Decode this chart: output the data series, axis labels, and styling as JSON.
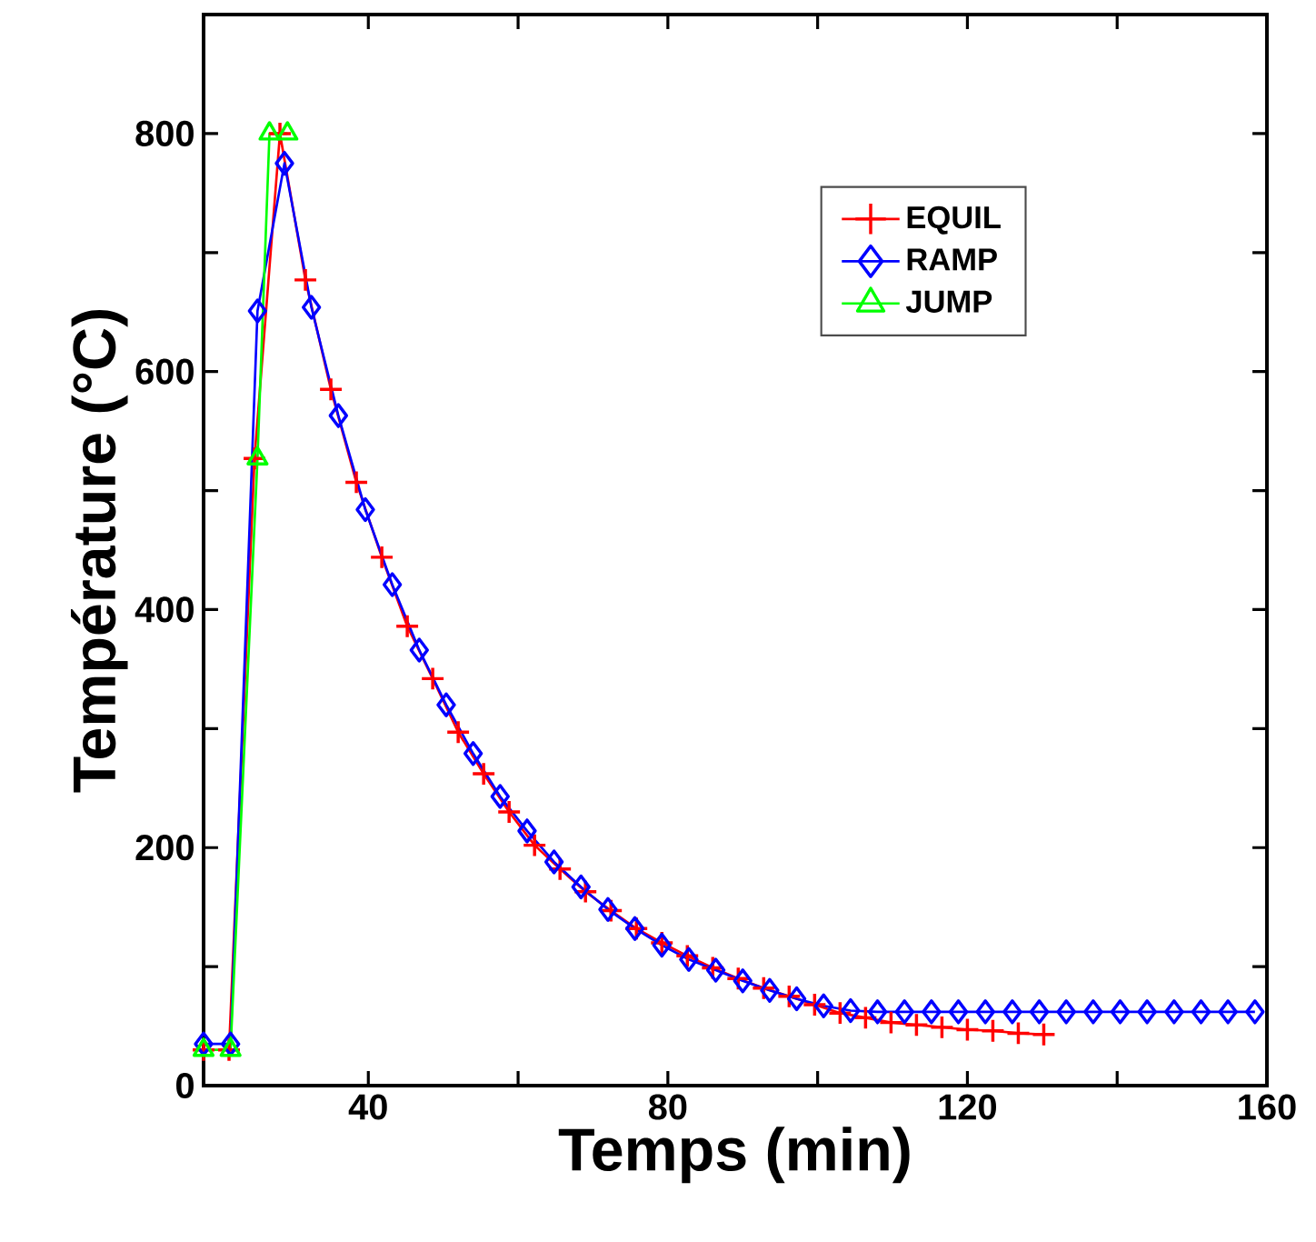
{
  "chart_data": {
    "type": "line",
    "xlabel": "Temps (min)",
    "ylabel": "Température (°C)",
    "xlim": [
      18,
      160
    ],
    "ylim": [
      0,
      900
    ],
    "xticks": [
      40,
      {
        "value": 60,
        "label": null
      },
      80,
      {
        "value": 100,
        "label": null
      },
      120,
      {
        "value": 140,
        "label": null
      },
      160
    ],
    "yticks": [
      0,
      {
        "value": 100,
        "label": null
      },
      200,
      {
        "value": 300,
        "label": null
      },
      400,
      {
        "value": 500,
        "label": null
      },
      600,
      {
        "value": 700,
        "label": null
      },
      800
    ],
    "grid": false,
    "legend": "top right",
    "series": [
      {
        "name": "EQUIL",
        "color": "#ff0000",
        "marker": "cross",
        "x": [
          18,
          21.4,
          24.8,
          28.2,
          31.6,
          35,
          38.4,
          41.8,
          45.2,
          48.6,
          52,
          55.4,
          58.8,
          62.2,
          65.6,
          69,
          72.4,
          75.8,
          79.2,
          82.6,
          86,
          89.4,
          92.8,
          96.2,
          99.6,
          103,
          106.4,
          109.8,
          113.2,
          116.6,
          120,
          123.4,
          126.8,
          130.2
        ],
        "values": [
          30,
          30,
          527,
          800,
          677,
          585,
          507,
          444,
          386,
          342,
          297,
          262,
          230,
          202,
          182,
          163,
          147,
          132,
          120,
          109,
          99,
          90,
          82,
          75,
          68,
          61,
          57,
          53,
          51,
          49,
          47,
          46,
          44,
          43
        ]
      },
      {
        "name": "RAMP",
        "color": "#0000ff",
        "marker": "diamond",
        "x": [
          18,
          21.6,
          25.2,
          28.8,
          32.4,
          36,
          39.6,
          43.2,
          46.8,
          50.4,
          54,
          57.6,
          61.2,
          64.8,
          68.4,
          72,
          75.6,
          79.2,
          82.8,
          86.4,
          90,
          93.6,
          97.2,
          100.8,
          104.4,
          108,
          111.6,
          115.2,
          118.8,
          122.4,
          126,
          129.6,
          133.2,
          136.8,
          140.4,
          144,
          147.6,
          151.2,
          154.8,
          158.4
        ],
        "values": [
          35,
          35,
          651,
          775,
          654,
          563,
          484,
          421,
          366,
          320,
          279,
          243,
          214,
          188,
          167,
          148,
          132,
          118,
          106,
          97,
          88,
          80,
          73,
          67,
          63,
          62,
          62,
          62,
          62,
          62,
          62,
          62,
          62,
          62,
          62,
          62,
          62,
          62,
          62,
          62
        ]
      },
      {
        "name": "JUMP",
        "color": "#00ff00",
        "marker": "triangle",
        "x": [
          18,
          21.6,
          25.2,
          26.8,
          29.2
        ],
        "values": [
          30,
          30,
          527,
          800,
          800
        ]
      }
    ]
  }
}
